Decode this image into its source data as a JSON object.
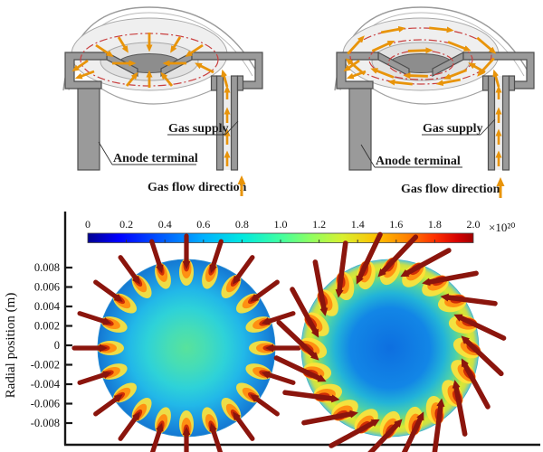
{
  "diagrams": [
    {
      "name": "radial-injection-schematic",
      "gas_supply_label": "Gas supply",
      "anode_terminal_label": "Anode terminal",
      "gas_flow_direction_label": "Gas flow direction",
      "flow_pattern": "radial"
    },
    {
      "name": "swirl-injection-schematic",
      "gas_supply_label": "Gas supply",
      "anode_terminal_label": "Anode terminal",
      "gas_flow_direction_label": "Gas flow direction",
      "flow_pattern": "swirl"
    }
  ],
  "colorbar": {
    "ticks": [
      "0",
      "0.2",
      "0.4",
      "0.6",
      "0.8",
      "1.0",
      "1.2",
      "1.4",
      "1.6",
      "1.8",
      "2.0"
    ],
    "exponent_label": "×10²⁰",
    "min": 0,
    "max": 2,
    "colormap": "jet"
  },
  "plot": {
    "ylabel": "Radial position (m)",
    "yticks": [
      "0.008",
      "0.006",
      "0.004",
      "0.002",
      "0",
      "-0.002",
      "-0.004",
      "-0.006",
      "-0.008"
    ]
  },
  "colors": {
    "arrow_orange": "#E8940A",
    "injection_dark_red": "#8B150D",
    "dashdot_red": "#C94040",
    "axis_black": "#161616",
    "metal_gray": "#9a9a9a"
  },
  "chart_data": {
    "type": "heatmap",
    "title": "",
    "xlabel": "",
    "ylabel": "Radial position (m)",
    "yticks": [
      0.008,
      0.006,
      0.004,
      0.002,
      0,
      -0.002,
      -0.004,
      -0.006,
      -0.008
    ],
    "ylim": [
      -0.0095,
      0.0095
    ],
    "grid": false,
    "colorbar": {
      "colormap": "jet",
      "min": 0,
      "max": 2.0,
      "scale_factor": "1e20",
      "tick_values": [
        0,
        0.2,
        0.4,
        0.6,
        0.8,
        1.0,
        1.2,
        1.4,
        1.6,
        1.8,
        2.0
      ]
    },
    "series": [
      {
        "name": "radial gas injection (left circle)",
        "n_injection_arrows": 20,
        "arrow_style": "radial inward",
        "center_value_x1e20": 0.75,
        "mid_value_x1e20": 0.6,
        "rim_value_x1e20": 0.9,
        "edge_hotspot_value_x1e20": 2.0,
        "description": "circular plasma cross-section, light green-cyan core, cyan-blue rim, 20 radial injection jets with red-hot spots at wall"
      },
      {
        "name": "swirl gas injection (right circle)",
        "n_injection_arrows": 20,
        "arrow_style": "tangential swirl, tilted ~25 deg",
        "center_value_x1e20": 0.45,
        "ring_value_x1e20": 1.3,
        "edge_hotspot_value_x1e20": 2.0,
        "description": "circular plasma cross-section, blue core, yellow-green annular ring near wall, 20 tilted injection jets with red-hot spots"
      }
    ]
  }
}
